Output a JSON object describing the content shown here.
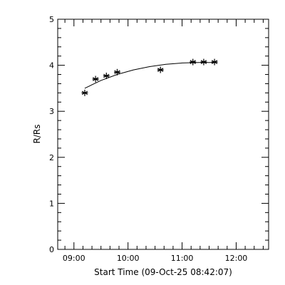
{
  "chart_data": {
    "type": "scatter",
    "title": "",
    "xlabel": "Start Time (09-Oct-25 08:42:07)",
    "ylabel": "R/Rs",
    "x_tick_labels": [
      "09:00",
      "10:00",
      "11:00",
      "12:00"
    ],
    "x_tick_values_hours": [
      9,
      10,
      11,
      12
    ],
    "y_tick_labels": [
      "0",
      "1",
      "2",
      "3",
      "4",
      "5"
    ],
    "y_tick_values": [
      0,
      1,
      2,
      3,
      4,
      5
    ],
    "xlim_hours": [
      8.7,
      12.6
    ],
    "ylim": [
      0,
      5
    ],
    "grid": false,
    "legend": "none",
    "series": [
      {
        "kind": "points",
        "marker": "asterisk",
        "points": [
          {
            "x": "09:12",
            "y": 3.4
          },
          {
            "x": "09:24",
            "y": 3.7
          },
          {
            "x": "09:36",
            "y": 3.77
          },
          {
            "x": "09:48",
            "y": 3.85
          },
          {
            "x": "10:36",
            "y": 3.9
          },
          {
            "x": "11:12",
            "y": 4.07
          },
          {
            "x": "11:24",
            "y": 4.07
          },
          {
            "x": "11:36",
            "y": 4.07
          }
        ]
      },
      {
        "kind": "fit-line",
        "points": [
          {
            "x": "09:12",
            "y": 3.5
          },
          {
            "x": "09:30",
            "y": 3.67
          },
          {
            "x": "09:48",
            "y": 3.8
          },
          {
            "x": "10:06",
            "y": 3.9
          },
          {
            "x": "10:24",
            "y": 3.97
          },
          {
            "x": "10:42",
            "y": 4.02
          },
          {
            "x": "11:00",
            "y": 4.05
          },
          {
            "x": "11:18",
            "y": 4.06
          },
          {
            "x": "11:36",
            "y": 4.06
          }
        ]
      }
    ]
  }
}
